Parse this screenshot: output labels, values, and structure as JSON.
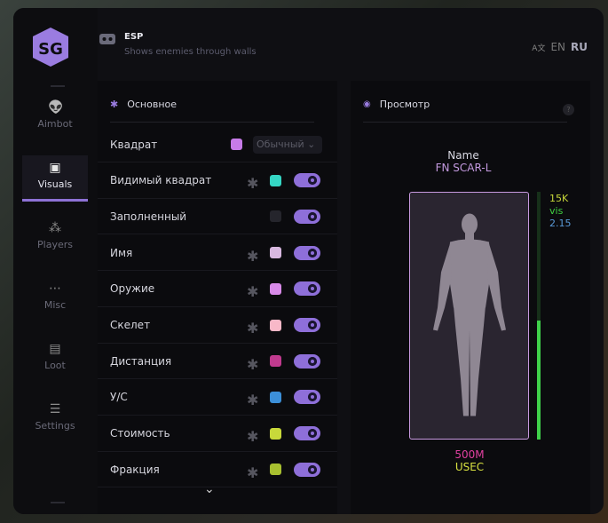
{
  "header": {
    "title": "ESP",
    "subtitle": "Shows enemies through walls",
    "lang": [
      "EN",
      "RU"
    ]
  },
  "sidebar": [
    {
      "label": "Aimbot",
      "icon": "alien-icon"
    },
    {
      "label": "Visuals",
      "icon": "vr-icon",
      "active": true
    },
    {
      "label": "Players",
      "icon": "users-icon"
    },
    {
      "label": "Misc",
      "icon": "dots-icon"
    },
    {
      "label": "Loot",
      "icon": "briefcase-icon"
    },
    {
      "label": "Settings",
      "icon": "list-icon"
    }
  ],
  "main": {
    "title": "Основное",
    "box_mode": "Обычный",
    "rows": [
      {
        "label": "Квадрат",
        "color": "#c77be8"
      },
      {
        "label": "Видимый квадрат",
        "color": "#35d6c4",
        "on": true
      },
      {
        "label": "Заполненный",
        "color": "#25252c",
        "on": true
      },
      {
        "label": "Имя",
        "color": "#d8b8e0",
        "on": true
      },
      {
        "label": "Оружие",
        "color": "#d88ae8",
        "on": true
      },
      {
        "label": "Скелет",
        "color": "#f8b8c8",
        "on": true
      },
      {
        "label": "Дистанция",
        "color": "#c03a8e",
        "on": true
      },
      {
        "label": "У/С",
        "color": "#3c8fd8",
        "on": true
      },
      {
        "label": "Стоимость",
        "color": "#c8d83a",
        "on": true
      },
      {
        "label": "Фракция",
        "color": "#a8c030",
        "on": true
      }
    ]
  },
  "preview": {
    "title": "Просмотр",
    "help": "?",
    "name": "Name",
    "weapon": "FN SCAR-L",
    "value": "15K",
    "visible": "vis",
    "ratio": "2.15",
    "distance": "500M",
    "faction": "USEC",
    "health_percent": 48
  }
}
